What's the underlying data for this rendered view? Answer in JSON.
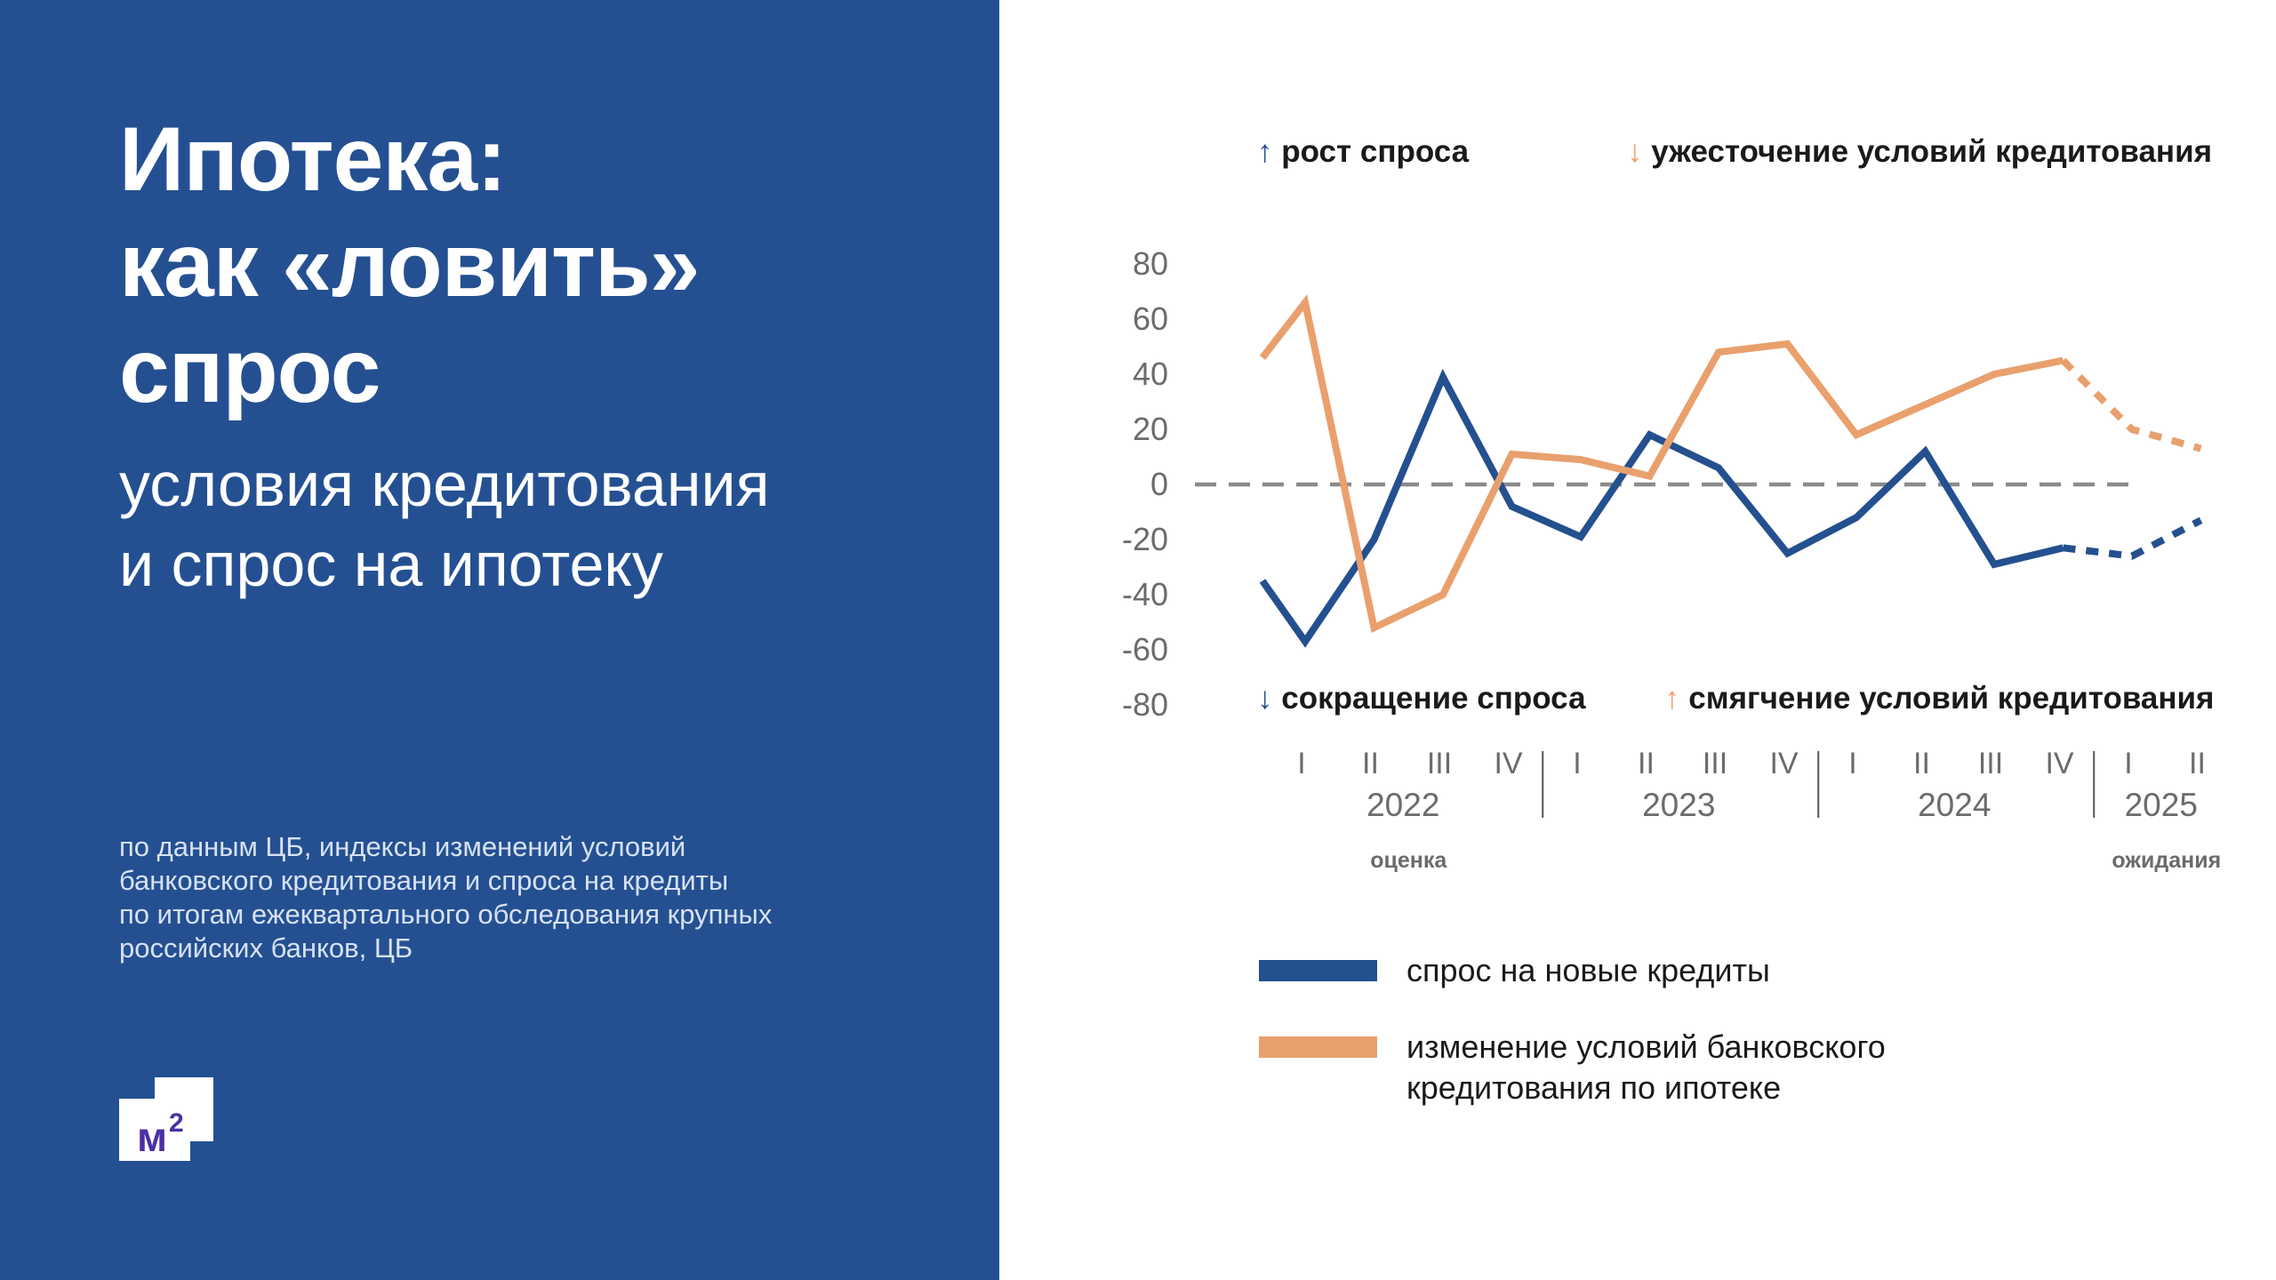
{
  "left": {
    "title_lines": [
      "Ипотека:",
      "как «ловить»",
      "спрос"
    ],
    "subtitle_lines": [
      "условия кредитования",
      "и спрос на ипотеку"
    ],
    "source_lines": [
      "по данным ЦБ, индексы изменений условий",
      "банковского кредитования и спроса на кредиты",
      "по итогам ежеквартального обследования крупных",
      "российских банков, ЦБ"
    ],
    "logo_text": "м",
    "logo_sup": "2"
  },
  "colors": {
    "left_panel_bg": "#245092",
    "demand": "#24508f",
    "conditions": "#e9a06d",
    "zero_line": "#8a8a8a",
    "tick_text": "#6b6b6b"
  },
  "chart_data": {
    "type": "line",
    "ylim": [
      -80,
      80
    ],
    "y_ticks": [
      80,
      60,
      40,
      20,
      0,
      -20,
      -40,
      -60,
      -80
    ],
    "categories": [
      "I",
      "II",
      "III",
      "IV",
      "I",
      "II",
      "III",
      "IV",
      "I",
      "II",
      "III",
      "IV",
      "I",
      "II"
    ],
    "year_groups": [
      {
        "label": "2022",
        "start": 0,
        "end": 3
      },
      {
        "label": "2023",
        "start": 4,
        "end": 7
      },
      {
        "label": "2024",
        "start": 8,
        "end": 11
      },
      {
        "label": "2025",
        "start": 12,
        "end": 13
      }
    ],
    "notes": [
      {
        "text": "оценка",
        "under_group": 0
      },
      {
        "text": "ожидания",
        "under_group": 3
      }
    ],
    "annotations": {
      "top_left": {
        "arrow": "↑",
        "text": "рост спроса"
      },
      "top_right": {
        "arrow": "↓",
        "text": "ужесточение условий кредитования"
      },
      "bottom_left": {
        "arrow": "↓",
        "text": "сокращение спроса"
      },
      "bottom_right": {
        "arrow": "↑",
        "text": "смягчение условий кредитования"
      }
    },
    "forecast_from_index": 11,
    "series": [
      {
        "name": "спрос на новые кредиты",
        "color": "#24508f",
        "values": [
          -57,
          -20,
          39,
          -8,
          -19,
          18,
          6,
          -25,
          -12,
          12,
          -29,
          -23,
          -26,
          -13
        ],
        "lead": {
          "value": -35
        }
      },
      {
        "name": "изменение условий банковского кредитования по ипотеке",
        "color": "#e9a06d",
        "values": [
          66,
          -52,
          -40,
          11,
          9,
          3,
          48,
          51,
          18,
          29,
          40,
          45,
          20,
          13
        ],
        "lead": {
          "value": 46
        }
      }
    ]
  }
}
